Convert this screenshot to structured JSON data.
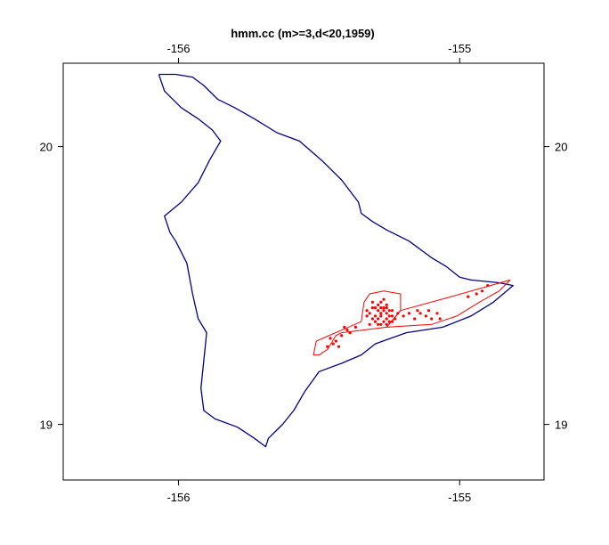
{
  "chart_data": {
    "type": "map",
    "title": "hmm.cc (m>=3,d<20,1959)",
    "x_ticks": [
      -156,
      -155
    ],
    "y_ticks": [
      19,
      20
    ],
    "x_tick_labels": [
      "-156",
      "-155"
    ],
    "y_tick_labels": [
      "19",
      "20"
    ],
    "xlim": [
      -156.41,
      -154.7
    ],
    "ylim": [
      18.8,
      20.3
    ],
    "grid": false,
    "colors": {
      "coastline": "#00008b",
      "region": "#ff0000",
      "events": "#ff0000"
    },
    "coastline": [
      [
        -156.07,
        20.26
      ],
      [
        -156.01,
        20.26
      ],
      [
        -155.95,
        20.25
      ],
      [
        -155.91,
        20.22
      ],
      [
        -155.86,
        20.17
      ],
      [
        -155.8,
        20.14
      ],
      [
        -155.73,
        20.1
      ],
      [
        -155.65,
        20.05
      ],
      [
        -155.57,
        20.02
      ],
      [
        -155.49,
        19.95
      ],
      [
        -155.42,
        19.88
      ],
      [
        -155.36,
        19.8
      ],
      [
        -155.35,
        19.76
      ],
      [
        -155.31,
        19.73
      ],
      [
        -155.26,
        19.7
      ],
      [
        -155.18,
        19.66
      ],
      [
        -155.1,
        19.6
      ],
      [
        -155.05,
        19.57
      ],
      [
        -155.0,
        19.53
      ],
      [
        -154.96,
        19.52
      ],
      [
        -154.86,
        19.51
      ],
      [
        -154.81,
        19.5
      ],
      [
        -154.88,
        19.44
      ],
      [
        -154.96,
        19.39
      ],
      [
        -155.06,
        19.35
      ],
      [
        -155.19,
        19.33
      ],
      [
        -155.3,
        19.29
      ],
      [
        -155.35,
        19.25
      ],
      [
        -155.42,
        19.22
      ],
      [
        -155.5,
        19.19
      ],
      [
        -155.55,
        19.12
      ],
      [
        -155.59,
        19.05
      ],
      [
        -155.63,
        19.0
      ],
      [
        -155.68,
        18.95
      ],
      [
        -155.69,
        18.92
      ],
      [
        -155.73,
        18.95
      ],
      [
        -155.79,
        18.99
      ],
      [
        -155.87,
        19.02
      ],
      [
        -155.91,
        19.05
      ],
      [
        -155.92,
        19.13
      ],
      [
        -155.91,
        19.23
      ],
      [
        -155.9,
        19.33
      ],
      [
        -155.93,
        19.38
      ],
      [
        -155.95,
        19.47
      ],
      [
        -155.97,
        19.58
      ],
      [
        -156.01,
        19.66
      ],
      [
        -156.03,
        19.69
      ],
      [
        -156.05,
        19.75
      ],
      [
        -155.99,
        19.8
      ],
      [
        -155.93,
        19.87
      ],
      [
        -155.89,
        19.95
      ],
      [
        -155.85,
        20.02
      ],
      [
        -155.88,
        20.06
      ],
      [
        -155.93,
        20.1
      ],
      [
        -155.99,
        20.14
      ],
      [
        -156.05,
        20.2
      ],
      [
        -156.07,
        20.26
      ]
    ],
    "regions": [
      {
        "name": "",
        "points": [
          [
            -155.27,
            19.48
          ],
          [
            -155.21,
            19.47
          ],
          [
            -155.21,
            19.41
          ],
          [
            -155.26,
            19.35
          ],
          [
            -155.42,
            19.33
          ],
          [
            -155.44,
            19.32
          ],
          [
            -155.47,
            19.27
          ],
          [
            -155.5,
            19.25
          ],
          [
            -155.52,
            19.25
          ],
          [
            -155.51,
            19.3
          ],
          [
            -155.35,
            19.37
          ],
          [
            -155.34,
            19.44
          ],
          [
            -155.32,
            19.47
          ],
          [
            -155.27,
            19.48
          ]
        ]
      },
      {
        "name": "",
        "points": [
          [
            -155.21,
            19.41
          ],
          [
            -155.03,
            19.46
          ],
          [
            -154.82,
            19.52
          ],
          [
            -154.86,
            19.48
          ],
          [
            -154.93,
            19.44
          ],
          [
            -155.01,
            19.39
          ],
          [
            -155.1,
            19.36
          ],
          [
            -155.26,
            19.35
          ],
          [
            -155.21,
            19.41
          ]
        ]
      }
    ],
    "events": [
      [
        -155.29,
        19.43
      ],
      [
        -155.28,
        19.4
      ],
      [
        -155.27,
        19.42
      ],
      [
        -155.26,
        19.38
      ],
      [
        -155.25,
        19.41
      ],
      [
        -155.3,
        19.39
      ],
      [
        -155.31,
        19.42
      ],
      [
        -155.32,
        19.4
      ],
      [
        -155.24,
        19.37
      ],
      [
        -155.28,
        19.36
      ],
      [
        -155.27,
        19.37
      ],
      [
        -155.29,
        19.41
      ],
      [
        -155.26,
        19.43
      ],
      [
        -155.25,
        19.39
      ],
      [
        -155.3,
        19.37
      ],
      [
        -155.31,
        19.38
      ],
      [
        -155.28,
        19.44
      ],
      [
        -155.27,
        19.45
      ],
      [
        -155.26,
        19.4
      ],
      [
        -155.24,
        19.41
      ],
      [
        -155.33,
        19.41
      ],
      [
        -155.32,
        19.36
      ],
      [
        -155.29,
        19.38
      ],
      [
        -155.23,
        19.38
      ],
      [
        -155.22,
        19.4
      ],
      [
        -155.31,
        19.44
      ],
      [
        -155.26,
        19.36
      ],
      [
        -155.28,
        19.39
      ],
      [
        -155.27,
        19.41
      ],
      [
        -155.25,
        19.37
      ],
      [
        -155.3,
        19.42
      ],
      [
        -155.29,
        19.36
      ],
      [
        -155.24,
        19.39
      ],
      [
        -155.33,
        19.39
      ],
      [
        -155.26,
        19.42
      ],
      [
        -155.28,
        19.42
      ],
      [
        -155.2,
        19.39
      ],
      [
        -155.18,
        19.4
      ],
      [
        -155.16,
        19.38
      ],
      [
        -155.14,
        19.4
      ],
      [
        -155.12,
        19.39
      ],
      [
        -155.1,
        19.38
      ],
      [
        -155.08,
        19.4
      ],
      [
        -155.07,
        19.38
      ],
      [
        -155.11,
        19.41
      ],
      [
        -155.15,
        19.41
      ],
      [
        -155.37,
        19.35
      ],
      [
        -155.4,
        19.34
      ],
      [
        -155.42,
        19.32
      ],
      [
        -155.44,
        19.3
      ],
      [
        -155.45,
        19.29
      ],
      [
        -155.46,
        19.31
      ],
      [
        -155.43,
        19.28
      ],
      [
        -155.47,
        19.28
      ],
      [
        -155.39,
        19.33
      ],
      [
        -155.41,
        19.35
      ],
      [
        -154.97,
        19.46
      ],
      [
        -154.94,
        19.47
      ],
      [
        -154.92,
        19.48
      ],
      [
        -154.9,
        19.5
      ]
    ]
  }
}
